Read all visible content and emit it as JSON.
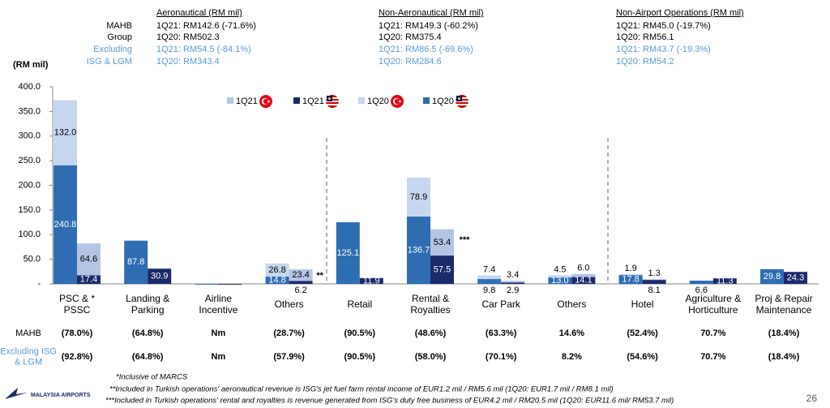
{
  "chart_data": {
    "type": "bar",
    "header": {
      "row_labels": [
        [
          "MAHB",
          "Group"
        ],
        [
          "Excluding",
          "ISG & LGM"
        ]
      ],
      "sections": [
        {
          "title": "Aeronautical (RM mil)",
          "group": [
            "1Q21: RM142.6 (-71.6%)",
            "1Q20: RM502.3"
          ],
          "excluding": [
            "1Q21: RM54.5 (-84.1%)",
            "1Q20: RM343.4"
          ]
        },
        {
          "title": "Non-Aeronautical (RM mil)",
          "group": [
            "1Q21: RM149.3 (-60.2%)",
            "1Q20: RM375.4"
          ],
          "excluding": [
            "1Q21: RM86.5 (-69.6%)",
            "1Q20: RM284.6"
          ]
        },
        {
          "title": "Non-Airport Operations (RM mil)",
          "group": [
            "1Q21: RM45.0 (-19.7%)",
            "1Q20: RM56.1"
          ],
          "excluding": [
            "1Q21: RM43.7 (-19.3%)",
            "1Q20: RM54.2"
          ]
        }
      ]
    },
    "y_label": "(RM mil)",
    "ylim": [
      0,
      400
    ],
    "yticks": [
      {
        "value": 0,
        "label": "-"
      },
      {
        "value": 50,
        "label": "50.0"
      },
      {
        "value": 100,
        "label": "100.0"
      },
      {
        "value": 150,
        "label": "150.0"
      },
      {
        "value": 200,
        "label": "200.0"
      },
      {
        "value": 250,
        "label": "250.0"
      },
      {
        "value": 300,
        "label": "300.0"
      },
      {
        "value": 350,
        "label": "350.0"
      },
      {
        "value": 400,
        "label": "400.0"
      }
    ],
    "categories": [
      "PSC & *\nPSSC",
      "Landing &\nParking",
      "Airline\nIncentive",
      "Others",
      "Retail",
      "Rental &\nRoyalties",
      "Car Park",
      "Others",
      "Hotel",
      "Agriculture &\nHorticulture",
      "Proj & Repair\nMaintenance"
    ],
    "series": [
      {
        "name": "1Q21",
        "color": "#b4c5e4",
        "values": [
          64.6,
          null,
          null,
          23.4,
          null,
          53.4,
          3.4,
          6.0,
          1.3,
          null,
          null
        ],
        "value_labels": [
          "64.6",
          null,
          null,
          "23.4",
          null,
          "53.4",
          "3.4",
          "6.0",
          "1.3",
          null,
          null
        ]
      },
      {
        "name": "1Q21",
        "color": "#1b2a6b",
        "values": [
          17.4,
          30.9,
          -1.5,
          6.2,
          11.9,
          57.5,
          2.9,
          14.1,
          8.1,
          11.3,
          24.3
        ],
        "value_labels": [
          "17.4",
          "30.9",
          null,
          "6.2",
          "11.9",
          "57.5",
          "2.9",
          "14.1",
          "8.1",
          "11.3",
          "24.3"
        ]
      },
      {
        "name": "1Q20",
        "color": "#c6d6ee",
        "values": [
          132.0,
          null,
          null,
          26.8,
          null,
          78.9,
          7.4,
          4.5,
          1.9,
          null,
          null
        ],
        "value_labels": [
          "132.0",
          null,
          null,
          "26.8",
          null,
          "78.9",
          "7.4",
          "4.5",
          "1.9",
          null,
          null
        ]
      },
      {
        "name": "1Q20",
        "color": "#2f6db3",
        "values": [
          240.8,
          87.8,
          -1.5,
          14.8,
          125.1,
          136.7,
          9.8,
          13.0,
          17.8,
          6.6,
          29.8
        ],
        "value_labels": [
          "240.8",
          "87.8",
          null,
          "14.8",
          "125.1",
          "136.7",
          "9.8",
          "13.0",
          "17.8",
          "6.6",
          "29.8"
        ]
      }
    ],
    "annotations": [
      "**",
      "***"
    ],
    "growth_table": {
      "rows": [
        {
          "label": "MAHB",
          "values": [
            "(78.0%)",
            "(64.8%)",
            "Nm",
            "(28.7%)",
            "(90.5%)",
            "(48.6%)",
            "(63.3%)",
            "14.6%",
            "(52.4%)",
            "70.7%",
            "(18.4%)"
          ]
        },
        {
          "label": "Excluding ISG\n& LGM",
          "values": [
            "(92.8%)",
            "(64.8%)",
            "Nm",
            "(57.9%)",
            "(90.5%)",
            "(58.0%)",
            "(70.1%)",
            "8.2%",
            "(54.6%)",
            "70.7%",
            "(18.4%)"
          ]
        }
      ]
    },
    "footnotes": [
      "*Inclusive of MARCS",
      "**Included in Turkish operations' aeronautical revenue is ISG's jet fuel farm rental income of EUR1.2 mil / RM5.6 mil (1Q20: EUR1.7 mil / RM8.1 mil)",
      "***Included in Turkish operations' rental and royalties is revenue generated from ISG's duty free business of EUR4.2 mil / RM20.5 mil (1Q20: EUR11.6 mil/ RM53.7 mil)"
    ],
    "logo": "MALAYSIA AIRPORTS",
    "page_number": "26"
  }
}
